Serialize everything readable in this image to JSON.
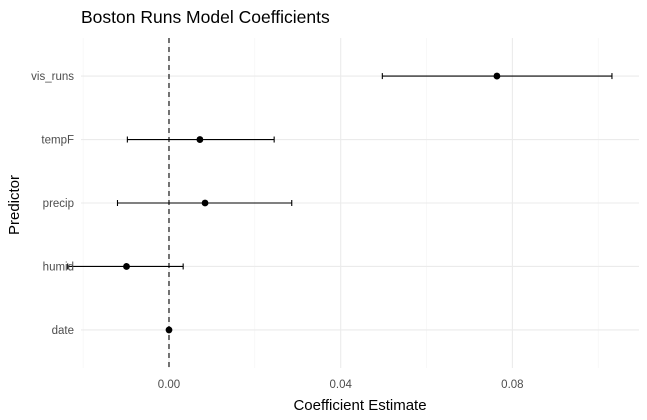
{
  "chart_data": {
    "type": "scatter",
    "title": "Boston Runs Model Coefficients",
    "xlabel": "Coefficient Estimate",
    "ylabel": "Predictor",
    "xlim": [
      -0.0205,
      0.1095
    ],
    "x_ticks": [
      0.0,
      0.04,
      0.08
    ],
    "x_tick_labels": [
      "0.00",
      "0.04",
      "0.08"
    ],
    "reference_line": {
      "x": 0,
      "style": "dashed"
    },
    "grid": true,
    "categories": [
      "vis_runs",
      "tempF",
      "precip",
      "humid",
      "date"
    ],
    "estimates": [
      0.0764,
      0.0072,
      0.0084,
      -0.0099,
      0.0
    ],
    "ci_low": [
      0.0497,
      -0.0097,
      -0.012,
      -0.0236,
      0.0
    ],
    "ci_high": [
      0.1032,
      0.0245,
      0.0286,
      0.0033,
      0.0
    ]
  }
}
